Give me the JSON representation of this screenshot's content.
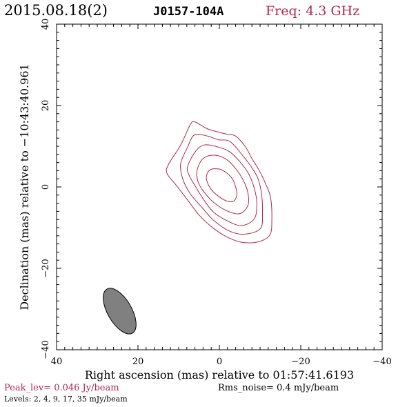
{
  "header": {
    "date": "2015.08.18(2)",
    "source": "J0157-104A",
    "freq": "Freq: 4.3 GHz"
  },
  "axes": {
    "xlabel": "Right ascension (mas) relative to 01:57:41.6193",
    "ylabel": "Declination (mas) relative to −10:43:40.961"
  },
  "footer": {
    "peak": "Peak_lev=  0.046 Jy/beam",
    "rms": "Rms_noise=  0.4 mJy/beam",
    "levels": "Levels:   2,   4,   9,   17,   35 mJy/beam"
  },
  "colors": {
    "contour": "#b0284a",
    "accent": "#b0284a",
    "text": "#000000",
    "beam": "#808080"
  },
  "chart_data": {
    "type": "contour",
    "xlim": [
      40,
      -40
    ],
    "ylim": [
      -40,
      40
    ],
    "xticks": [
      40,
      20,
      0,
      -20,
      -40
    ],
    "yticks": [
      -40,
      -20,
      0,
      20,
      40
    ],
    "xtick_labels": [
      "40",
      "20",
      "0",
      "−20",
      "−40"
    ],
    "ytick_labels": [
      "−40",
      "−20",
      "0",
      "20",
      "40"
    ],
    "levels_mJy": [
      2,
      4,
      9,
      17,
      35
    ],
    "contours": [
      [
        [
          12.4,
          5.7
        ],
        [
          9.5,
          10.3
        ],
        [
          7.2,
          15.2
        ],
        [
          6.1,
          16.0
        ],
        [
          3.2,
          14.4
        ],
        [
          1.4,
          13.8
        ],
        [
          -1.7,
          13.0
        ],
        [
          -4.0,
          12.5
        ],
        [
          -6.3,
          10.0
        ],
        [
          -8.0,
          7.0
        ],
        [
          -9.7,
          4.2
        ],
        [
          -11.4,
          0.7
        ],
        [
          -12.6,
          -2.7
        ],
        [
          -12.9,
          -8.0
        ],
        [
          -12.4,
          -11.8
        ],
        [
          -9.5,
          -13.5
        ],
        [
          -5.5,
          -13.6
        ],
        [
          -2.1,
          -12.4
        ],
        [
          1.4,
          -10.2
        ],
        [
          4.9,
          -7.0
        ],
        [
          7.8,
          -3.2
        ],
        [
          10.6,
          0.4
        ],
        [
          12.9,
          3.4
        ]
      ],
      [
        [
          9.5,
          5.7
        ],
        [
          7.8,
          9.8
        ],
        [
          6.1,
          12.8
        ],
        [
          2.9,
          12.5
        ],
        [
          0.3,
          11.6
        ],
        [
          -2.6,
          11.2
        ],
        [
          -5.5,
          8.0
        ],
        [
          -7.8,
          5.0
        ],
        [
          -9.5,
          2.0
        ],
        [
          -10.4,
          -2.0
        ],
        [
          -10.6,
          -6.2
        ],
        [
          -10.1,
          -10.2
        ],
        [
          -6.3,
          -11.6
        ],
        [
          -2.6,
          -10.9
        ],
        [
          1.4,
          -8.2
        ],
        [
          4.3,
          -5.0
        ],
        [
          7.2,
          -1.6
        ],
        [
          9.0,
          2.0
        ]
      ],
      [
        [
          7.8,
          5.0
        ],
        [
          6.1,
          8.4
        ],
        [
          3.8,
          10.3
        ],
        [
          0.3,
          9.8
        ],
        [
          -2.6,
          8.6
        ],
        [
          -5.2,
          6.0
        ],
        [
          -7.2,
          3.2
        ],
        [
          -8.6,
          -0.4
        ],
        [
          -9.2,
          -4.0
        ],
        [
          -8.6,
          -7.8
        ],
        [
          -5.5,
          -9.5
        ],
        [
          -2.1,
          -8.4
        ],
        [
          1.4,
          -6.2
        ],
        [
          3.8,
          -3.2
        ],
        [
          5.8,
          0.0
        ],
        [
          7.5,
          3.0
        ]
      ],
      [
        [
          5.5,
          4.0
        ],
        [
          4.0,
          7.0
        ],
        [
          1.2,
          7.8
        ],
        [
          -1.7,
          6.8
        ],
        [
          -4.0,
          4.5
        ],
        [
          -5.8,
          1.8
        ],
        [
          -7.0,
          -1.4
        ],
        [
          -7.0,
          -4.6
        ],
        [
          -4.9,
          -6.6
        ],
        [
          -1.7,
          -5.8
        ],
        [
          1.4,
          -3.8
        ],
        [
          3.8,
          -1.2
        ],
        [
          5.2,
          1.2
        ]
      ],
      [
        [
          3.2,
          2.3
        ],
        [
          2.3,
          4.2
        ],
        [
          0.0,
          4.4
        ],
        [
          -1.7,
          3.5
        ],
        [
          -3.2,
          2.0
        ],
        [
          -4.0,
          0.0
        ],
        [
          -4.3,
          -1.9
        ],
        [
          -3.5,
          -3.5
        ],
        [
          -1.7,
          -3.4
        ],
        [
          0.6,
          -2.0
        ],
        [
          2.3,
          -0.2
        ]
      ]
    ],
    "beam": {
      "x": 24.5,
      "y": -30.5,
      "major_mas": 12.5,
      "minor_mas": 5.9,
      "pa_deg": -30
    }
  }
}
